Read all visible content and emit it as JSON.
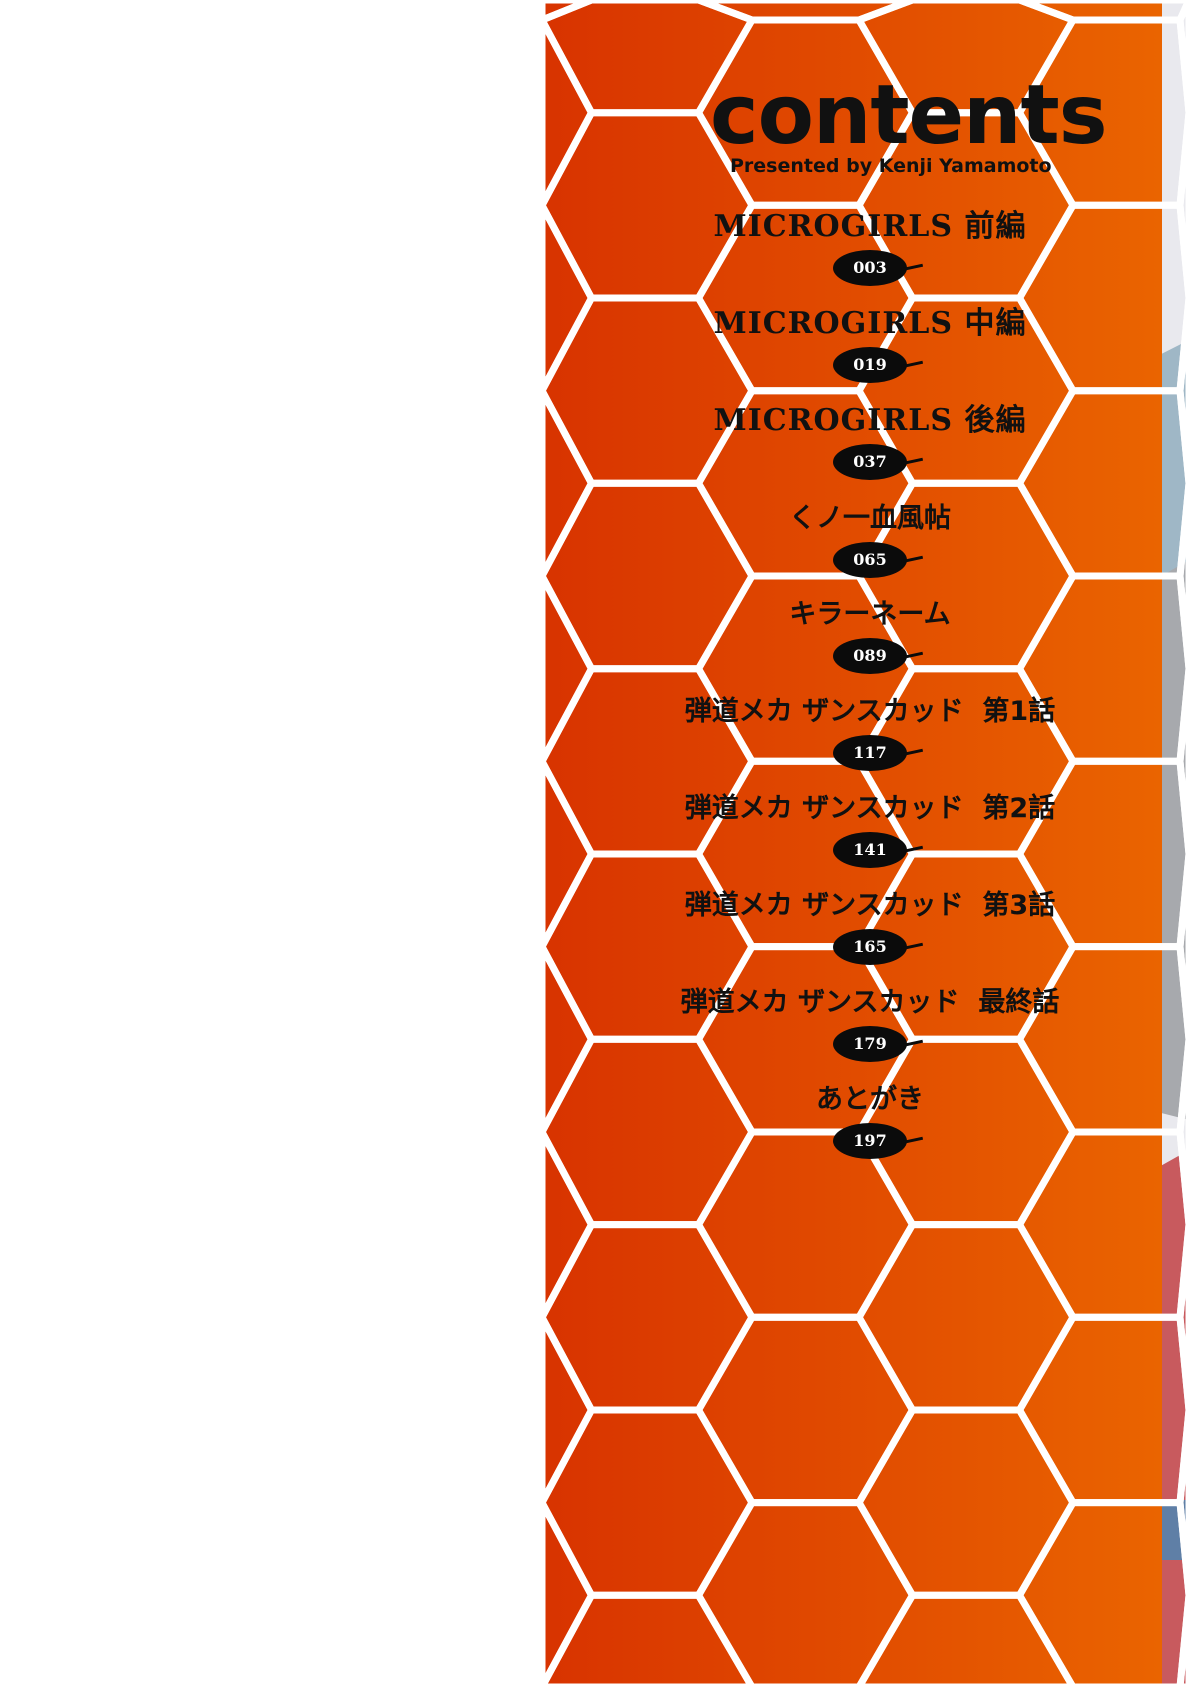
{
  "header": {
    "title": "contents",
    "subtitle": "Presented by Kenji Yamamoto"
  },
  "entries": [
    {
      "title": "MICROGIRLS 前編",
      "page": "003",
      "latin": true
    },
    {
      "title": "MICROGIRLS 中編",
      "page": "019",
      "latin": true
    },
    {
      "title": "MICROGIRLS 後編",
      "page": "037",
      "latin": true
    },
    {
      "title": "くノ一血風帖",
      "page": "065"
    },
    {
      "title": "キラーネーム",
      "page": "089"
    },
    {
      "title": "弾道メカ ザンスカッド  第1話",
      "page": "117"
    },
    {
      "title": "弾道メカ ザンスカッド  第2話",
      "page": "141"
    },
    {
      "title": "弾道メカ ザンスカッド  第3話",
      "page": "165"
    },
    {
      "title": "弾道メカ ザンスカッド  最終話",
      "page": "179"
    },
    {
      "title": "あとがき",
      "page": "197"
    }
  ],
  "colors": {
    "orange_left": "#d83300",
    "orange_right": "#ea6400",
    "hex_lines": "#ffffff",
    "art_blue": "#8fb0c4",
    "art_pink": "#c85a5e"
  }
}
